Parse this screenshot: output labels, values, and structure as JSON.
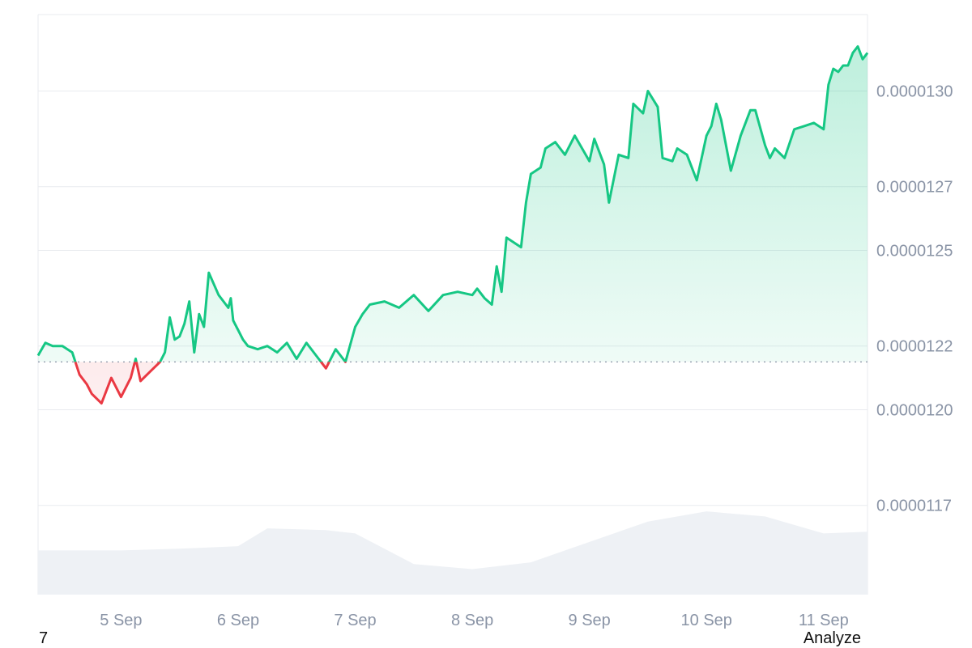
{
  "colors": {
    "up": "#16c784",
    "down": "#ea3943",
    "up_fill": "#16c784",
    "down_fill": "#ea3943",
    "volume": "#eef1f5",
    "grid": "#e9ebef",
    "baseline": "#8a94a6"
  },
  "chart_data": {
    "type": "area",
    "title": "",
    "xlabel": "",
    "ylabel": "",
    "x_ticks": [
      "5 Sep",
      "6 Sep",
      "7 Sep",
      "8 Sep",
      "9 Sep",
      "10 Sep",
      "11 Sep"
    ],
    "y_ticks": [
      "0.0000117",
      "0.0000120",
      "0.0000122",
      "0.0000125",
      "0.0000127",
      "0.0000130"
    ],
    "y_tick_values": [
      1.17e-05,
      1.2e-05,
      1.22e-05,
      1.25e-05,
      1.27e-05,
      1.3e-05
    ],
    "ylim": [
      1.142e-05,
      1.324e-05
    ],
    "xlim": [
      "4 Sep 07:00",
      "11 Sep 09:00"
    ],
    "baseline_value": 1.215e-05,
    "grid": true,
    "series": [
      {
        "x": [
          "4 Sep 07:00",
          "4 Sep 08:30",
          "4 Sep 10:00",
          "4 Sep 12:00",
          "4 Sep 14:00",
          "4 Sep 15:30",
          "4 Sep 17:00",
          "4 Sep 18:00",
          "4 Sep 20:00",
          "4 Sep 22:00",
          "5 Sep 00:00",
          "5 Sep 02:00",
          "5 Sep 03:00",
          "5 Sep 04:00",
          "5 Sep 06:00",
          "5 Sep 08:00",
          "5 Sep 09:00",
          "5 Sep 10:00",
          "5 Sep 11:00",
          "5 Sep 12:00",
          "5 Sep 13:00",
          "5 Sep 14:00",
          "5 Sep 15:00",
          "5 Sep 16:00",
          "5 Sep 17:00",
          "5 Sep 18:00",
          "5 Sep 20:00",
          "5 Sep 21:30",
          "5 Sep 22:00",
          "5 Sep 22:30",
          "5 Sep 23:00",
          "6 Sep 00:00",
          "6 Sep 01:00",
          "6 Sep 02:00",
          "6 Sep 04:00",
          "6 Sep 06:00",
          "6 Sep 08:00",
          "6 Sep 10:00",
          "6 Sep 12:00",
          "6 Sep 14:00",
          "6 Sep 16:00",
          "6 Sep 18:00",
          "6 Sep 20:00",
          "6 Sep 22:00",
          "7 Sep 00:00",
          "7 Sep 01:30",
          "7 Sep 03:00",
          "7 Sep 06:00",
          "7 Sep 09:00",
          "7 Sep 12:00",
          "7 Sep 15:00",
          "7 Sep 18:00",
          "7 Sep 21:00",
          "8 Sep 00:00",
          "8 Sep 01:00",
          "8 Sep 02:30",
          "8 Sep 04:00",
          "8 Sep 05:00",
          "8 Sep 06:00",
          "8 Sep 07:00",
          "8 Sep 10:00",
          "8 Sep 11:00",
          "8 Sep 12:00",
          "8 Sep 14:00",
          "8 Sep 15:00",
          "8 Sep 17:00",
          "8 Sep 19:00",
          "8 Sep 21:00",
          "9 Sep 00:00",
          "9 Sep 01:00",
          "9 Sep 03:00",
          "9 Sep 04:00",
          "9 Sep 06:00",
          "9 Sep 08:00",
          "9 Sep 09:00",
          "9 Sep 11:00",
          "9 Sep 12:00",
          "9 Sep 14:00",
          "9 Sep 15:00",
          "9 Sep 17:00",
          "9 Sep 18:00",
          "9 Sep 20:00",
          "9 Sep 22:00",
          "10 Sep 00:00",
          "10 Sep 01:00",
          "10 Sep 02:00",
          "10 Sep 03:00",
          "10 Sep 05:00",
          "10 Sep 07:00",
          "10 Sep 09:00",
          "10 Sep 10:00",
          "10 Sep 12:00",
          "10 Sep 13:00",
          "10 Sep 14:00",
          "10 Sep 16:00",
          "10 Sep 18:00",
          "10 Sep 20:00",
          "10 Sep 22:00",
          "11 Sep 00:00",
          "11 Sep 01:00",
          "11 Sep 02:00",
          "11 Sep 03:00",
          "11 Sep 04:00",
          "11 Sep 05:00",
          "11 Sep 06:00",
          "11 Sep 07:00",
          "11 Sep 08:00",
          "11 Sep 09:00"
        ],
        "values": [
          1.217e-05,
          1.221e-05,
          1.22e-05,
          1.22e-05,
          1.218e-05,
          1.211e-05,
          1.208e-05,
          1.205e-05,
          1.202e-05,
          1.21e-05,
          1.204e-05,
          1.21e-05,
          1.216e-05,
          1.209e-05,
          1.212e-05,
          1.215e-05,
          1.218e-05,
          1.229e-05,
          1.222e-05,
          1.223e-05,
          1.227e-05,
          1.234e-05,
          1.218e-05,
          1.23e-05,
          1.226e-05,
          1.243e-05,
          1.236e-05,
          1.233e-05,
          1.232e-05,
          1.235e-05,
          1.228e-05,
          1.225e-05,
          1.222e-05,
          1.22e-05,
          1.219e-05,
          1.22e-05,
          1.218e-05,
          1.221e-05,
          1.216e-05,
          1.221e-05,
          1.217e-05,
          1.213e-05,
          1.219e-05,
          1.215e-05,
          1.226e-05,
          1.23e-05,
          1.233e-05,
          1.234e-05,
          1.232e-05,
          1.236e-05,
          1.231e-05,
          1.236e-05,
          1.237e-05,
          1.236e-05,
          1.238e-05,
          1.235e-05,
          1.233e-05,
          1.245e-05,
          1.237e-05,
          1.254e-05,
          1.251e-05,
          1.265e-05,
          1.274e-05,
          1.276e-05,
          1.282e-05,
          1.284e-05,
          1.28e-05,
          1.286e-05,
          1.278e-05,
          1.285e-05,
          1.277e-05,
          1.265e-05,
          1.28e-05,
          1.279e-05,
          1.296e-05,
          1.293e-05,
          1.3e-05,
          1.295e-05,
          1.279e-05,
          1.278e-05,
          1.282e-05,
          1.28e-05,
          1.272e-05,
          1.286e-05,
          1.289e-05,
          1.296e-05,
          1.291e-05,
          1.275e-05,
          1.286e-05,
          1.294e-05,
          1.294e-05,
          1.283e-05,
          1.279e-05,
          1.282e-05,
          1.279e-05,
          1.288e-05,
          1.289e-05,
          1.29e-05,
          1.288e-05,
          1.302e-05,
          1.307e-05,
          1.306e-05,
          1.308e-05,
          1.308e-05,
          1.312e-05,
          1.314e-05,
          1.31e-05,
          1.312e-05
        ]
      }
    ],
    "volume": {
      "x": [
        "4 Sep 07:00",
        "5 Sep 00:00",
        "5 Sep 12:00",
        "6 Sep 00:00",
        "6 Sep 06:00",
        "6 Sep 18:00",
        "7 Sep 00:00",
        "7 Sep 12:00",
        "8 Sep 00:00",
        "8 Sep 12:00",
        "9 Sep 00:00",
        "9 Sep 12:00",
        "10 Sep 00:00",
        "10 Sep 12:00",
        "11 Sep 00:00",
        "11 Sep 09:00"
      ],
      "values": [
        52,
        52,
        54,
        57,
        78,
        76,
        72,
        36,
        30,
        38,
        62,
        86,
        98,
        92,
        72,
        74
      ]
    }
  },
  "footer": {
    "left_text": "7",
    "right_text": "Analyze"
  }
}
